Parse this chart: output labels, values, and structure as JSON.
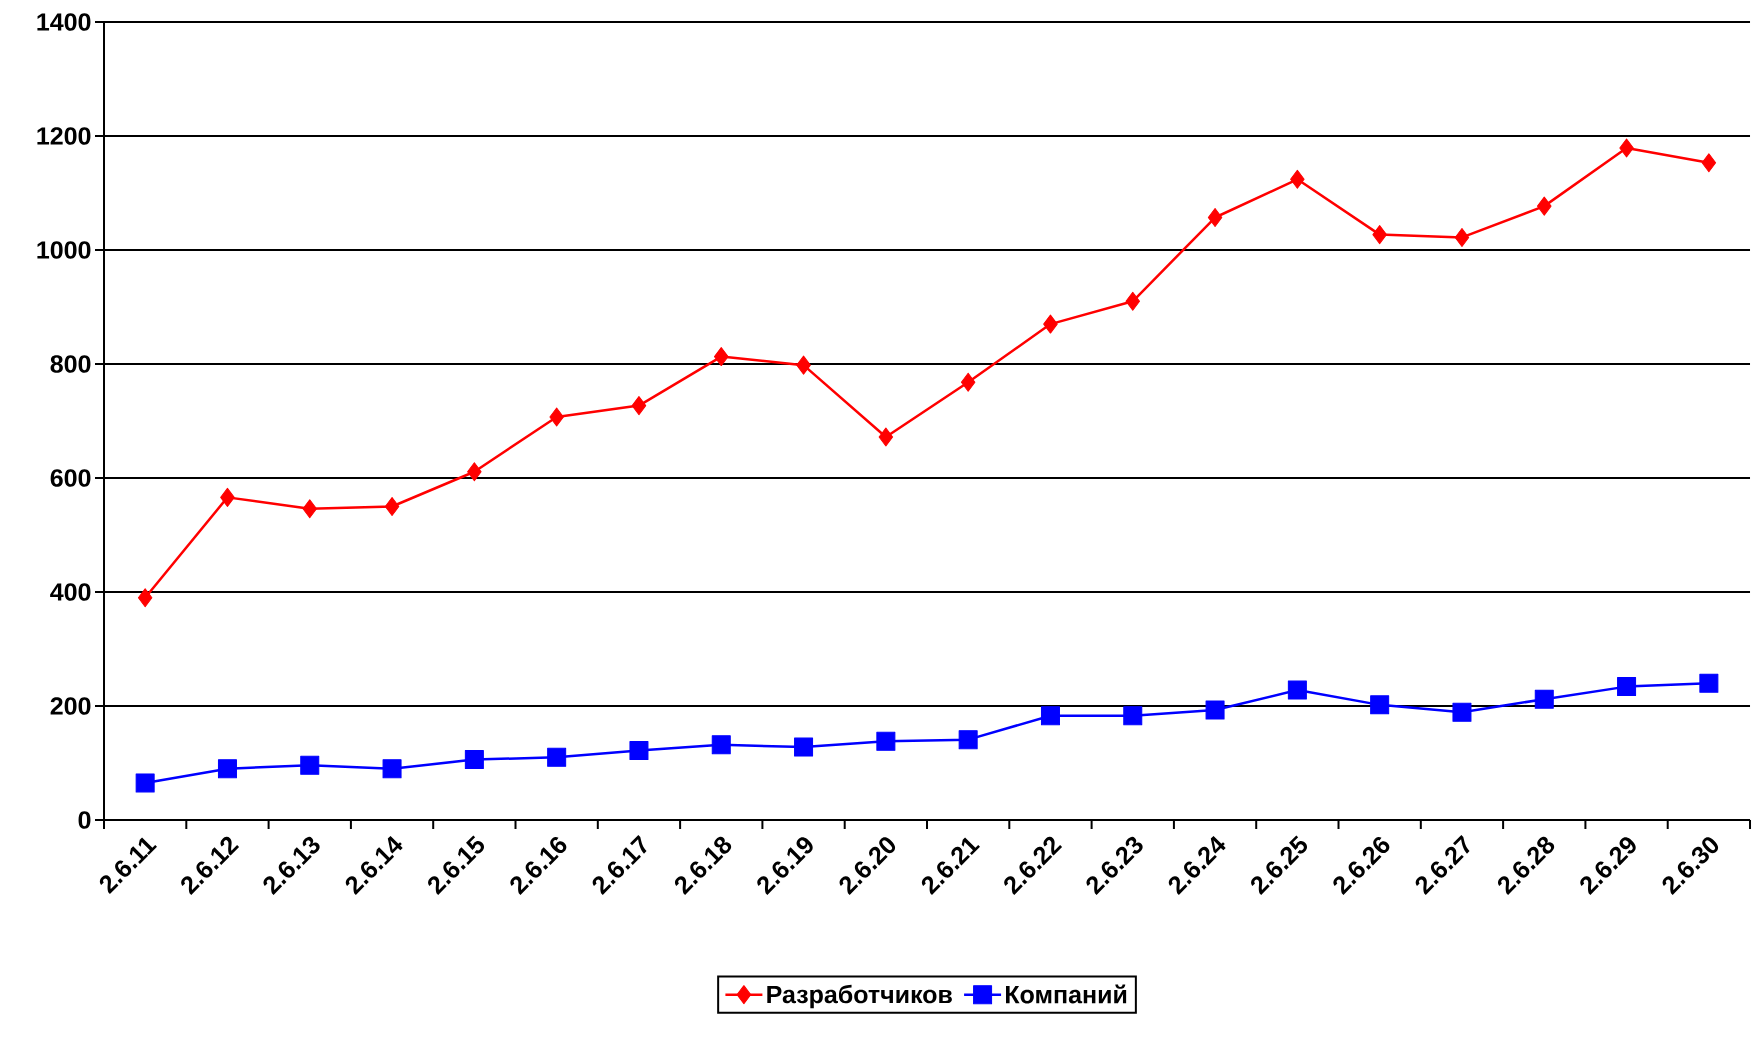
{
  "chart_data": {
    "type": "line",
    "categories": [
      "2.6.11",
      "2.6.12",
      "2.6.13",
      "2.6.14",
      "2.6.15",
      "2.6.16",
      "2.6.17",
      "2.6.18",
      "2.6.19",
      "2.6.20",
      "2.6.21",
      "2.6.22",
      "2.6.23",
      "2.6.24",
      "2.6.25",
      "2.6.26",
      "2.6.27",
      "2.6.28",
      "2.6.29",
      "2.6.30"
    ],
    "series": [
      {
        "name": "Разработчиков",
        "color": "#ff0000",
        "marker": "diamond",
        "values": [
          390,
          566,
          546,
          550,
          611,
          707,
          727,
          813,
          798,
          672,
          768,
          870,
          910,
          1057,
          1124,
          1027,
          1022,
          1077,
          1179,
          1153
        ]
      },
      {
        "name": "Компаний",
        "color": "#0000ff",
        "marker": "square",
        "values": [
          65,
          90,
          96,
          90,
          106,
          110,
          122,
          132,
          128,
          138,
          141,
          183,
          183,
          193,
          228,
          202,
          189,
          212,
          234,
          240
        ]
      }
    ],
    "ylim": [
      0,
      1400
    ],
    "yticks": [
      0,
      200,
      400,
      600,
      800,
      1000,
      1200,
      1400
    ],
    "grid": "y",
    "legend": "bottom"
  }
}
